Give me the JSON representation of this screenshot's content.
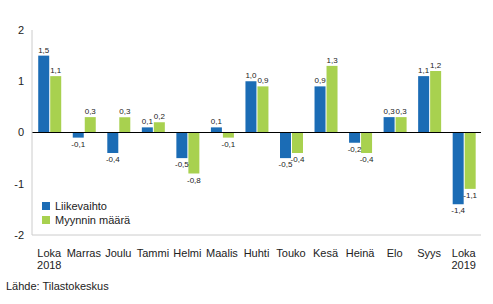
{
  "chart_data": {
    "type": "bar",
    "categories": [
      "Loka 2018",
      "Marras",
      "Joulu",
      "Tammi",
      "Helmi",
      "Maalis",
      "Huhti",
      "Touko",
      "Kesä",
      "Heinä",
      "Elo",
      "Syys",
      "Loka 2019"
    ],
    "series": [
      {
        "name": "Liikevaihto",
        "color": "#1b6cb5",
        "values": [
          1.5,
          -0.1,
          -0.4,
          0.1,
          -0.5,
          0.1,
          1.0,
          -0.5,
          0.9,
          -0.2,
          0.3,
          1.1,
          -1.4
        ],
        "value_labels": [
          "1,5",
          "-0,1",
          "-0,4",
          "0,1",
          "-0,5",
          "0,1",
          "1,0",
          "-0,5",
          "0,9",
          "-0,2",
          "0,3",
          "1,1",
          "-1,4"
        ]
      },
      {
        "name": "Myynnin määrä",
        "color": "#a8d14f",
        "values": [
          1.1,
          0.3,
          0.3,
          0.2,
          -0.8,
          -0.1,
          0.9,
          -0.4,
          1.3,
          -0.4,
          0.3,
          1.2,
          -1.1
        ],
        "value_labels": [
          "1,1",
          "0,3",
          "0,3",
          "0,2",
          "-0,8",
          "-0,1",
          "0,9",
          "-0,4",
          "1,3",
          "-0,4",
          "0,3",
          "1,2",
          "-1,1"
        ]
      }
    ],
    "ylim": [
      -2,
      2
    ],
    "yticks": [
      -2,
      -1,
      0,
      1,
      2
    ],
    "grid": false,
    "data_labels": true,
    "legend": "lower left",
    "source": "Lähde: Tilastokeskus"
  }
}
